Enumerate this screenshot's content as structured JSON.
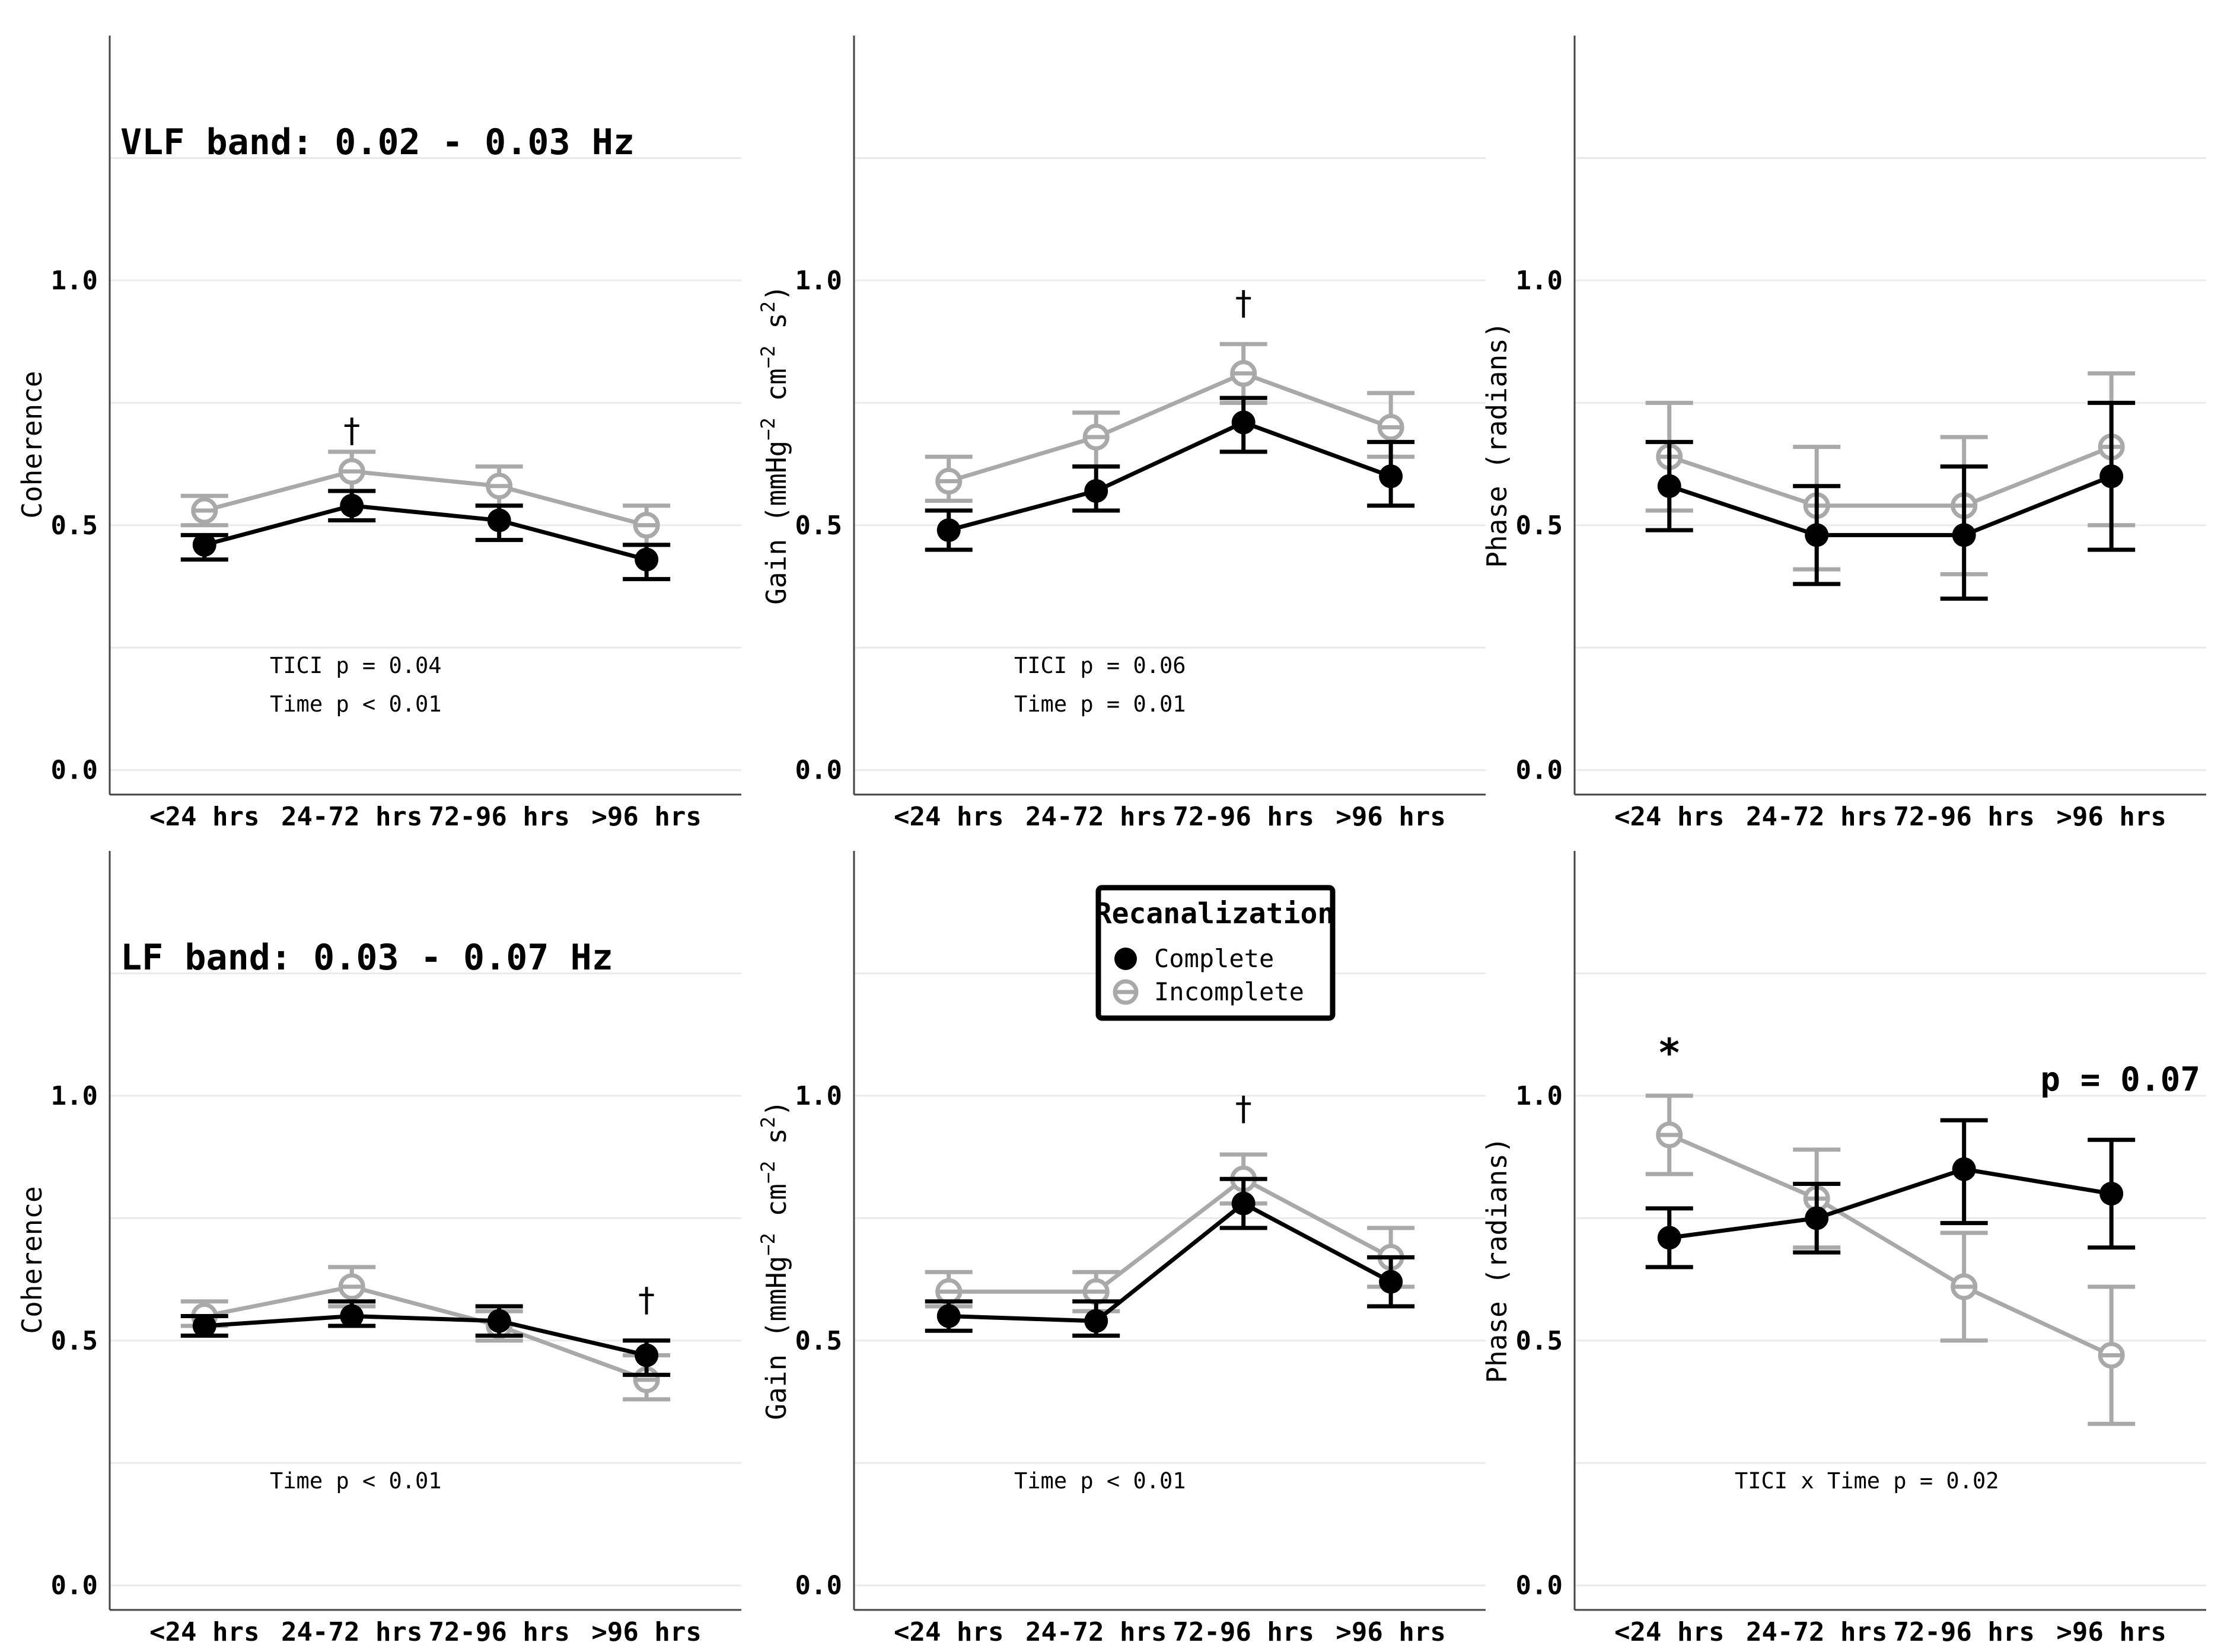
{
  "colors": {
    "complete": "#000000",
    "incomplete": "#a9a9a9",
    "grid": "#ebebeb",
    "axis": "#444444"
  },
  "legend": {
    "title": "Recanalization",
    "items": [
      {
        "label": "Complete",
        "series": "complete"
      },
      {
        "label": "Incomplete",
        "series": "incomplete"
      }
    ]
  },
  "chart_data": [
    {
      "type": "line",
      "row": 0,
      "col": 0,
      "band_label": "VLF band: 0.02 - 0.03 Hz",
      "ylabel": "Coherence",
      "ylim": [
        -0.05,
        1.5
      ],
      "yticks": [
        0.0,
        0.5,
        1.0
      ],
      "categories": [
        "<24 hrs",
        "24-72 hrs",
        "72-96 hrs",
        ">96 hrs"
      ],
      "series": [
        {
          "name": "Complete",
          "key": "complete",
          "values": [
            0.46,
            0.54,
            0.51,
            0.43
          ],
          "lower": [
            0.43,
            0.51,
            0.47,
            0.39
          ],
          "upper": [
            0.48,
            0.57,
            0.54,
            0.46
          ]
        },
        {
          "name": "Incomplete",
          "key": "incomplete",
          "values": [
            0.53,
            0.61,
            0.58,
            0.5
          ],
          "lower": [
            0.5,
            0.57,
            0.54,
            0.46
          ],
          "upper": [
            0.56,
            0.65,
            0.62,
            0.54
          ]
        }
      ],
      "annotations": [
        {
          "text": "†",
          "category": "24-72 hrs",
          "y": 0.67,
          "kind": "dag"
        }
      ],
      "stats": [
        "TICI p = 0.04",
        "Time p < 0.01"
      ]
    },
    {
      "type": "line",
      "row": 0,
      "col": 1,
      "ylabel_main": "Gain (mmHg",
      "ylabel_exp1": "−2",
      "ylabel_mid": " cm",
      "ylabel_exp2": "−2",
      "ylabel_s": " s",
      "ylabel_exp3": "2",
      "ylabel_end": ")",
      "ylim": [
        -0.05,
        1.5
      ],
      "yticks": [
        0.0,
        0.5,
        1.0
      ],
      "categories": [
        "<24 hrs",
        "24-72 hrs",
        "72-96 hrs",
        ">96 hrs"
      ],
      "series": [
        {
          "name": "Complete",
          "key": "complete",
          "values": [
            0.49,
            0.57,
            0.71,
            0.6
          ],
          "lower": [
            0.45,
            0.53,
            0.65,
            0.54
          ],
          "upper": [
            0.53,
            0.62,
            0.76,
            0.67
          ]
        },
        {
          "name": "Incomplete",
          "key": "incomplete",
          "values": [
            0.59,
            0.68,
            0.81,
            0.7
          ],
          "lower": [
            0.55,
            0.62,
            0.75,
            0.64
          ],
          "upper": [
            0.64,
            0.73,
            0.87,
            0.77
          ]
        }
      ],
      "annotations": [
        {
          "text": "†",
          "category": "72-96 hrs",
          "y": 0.93,
          "kind": "dag"
        }
      ],
      "stats": [
        "TICI p = 0.06",
        "Time p = 0.01"
      ]
    },
    {
      "type": "line",
      "row": 0,
      "col": 2,
      "ylabel": "Phase (radians)",
      "ylim": [
        -0.05,
        1.5
      ],
      "yticks": [
        0.0,
        0.5,
        1.0
      ],
      "categories": [
        "<24 hrs",
        "24-72 hrs",
        "72-96 hrs",
        ">96 hrs"
      ],
      "series": [
        {
          "name": "Complete",
          "key": "complete",
          "values": [
            0.58,
            0.48,
            0.48,
            0.6
          ],
          "lower": [
            0.49,
            0.38,
            0.35,
            0.45
          ],
          "upper": [
            0.67,
            0.58,
            0.62,
            0.75
          ]
        },
        {
          "name": "Incomplete",
          "key": "incomplete",
          "values": [
            0.64,
            0.54,
            0.54,
            0.66
          ],
          "lower": [
            0.53,
            0.41,
            0.4,
            0.5
          ],
          "upper": [
            0.75,
            0.66,
            0.68,
            0.81
          ]
        }
      ],
      "annotations": [],
      "stats": []
    },
    {
      "type": "line",
      "row": 1,
      "col": 0,
      "band_label": "LF band: 0.03 - 0.07 Hz",
      "ylabel": "Coherence",
      "ylim": [
        -0.05,
        1.5
      ],
      "yticks": [
        0.0,
        0.5,
        1.0
      ],
      "categories": [
        "<24 hrs",
        "24-72 hrs",
        "72-96 hrs",
        ">96 hrs"
      ],
      "series": [
        {
          "name": "Complete",
          "key": "complete",
          "values": [
            0.53,
            0.55,
            0.54,
            0.47
          ],
          "lower": [
            0.51,
            0.53,
            0.51,
            0.43
          ],
          "upper": [
            0.55,
            0.58,
            0.57,
            0.5
          ]
        },
        {
          "name": "Incomplete",
          "key": "incomplete",
          "values": [
            0.55,
            0.61,
            0.53,
            0.42
          ],
          "lower": [
            0.53,
            0.57,
            0.5,
            0.38
          ],
          "upper": [
            0.58,
            0.65,
            0.56,
            0.47
          ]
        }
      ],
      "annotations": [
        {
          "text": "†",
          "category": ">96 hrs",
          "y": 0.56,
          "kind": "dag"
        }
      ],
      "stats": [
        "Time p < 0.01"
      ]
    },
    {
      "type": "line",
      "row": 1,
      "col": 1,
      "ylabel_main": "Gain (mmHg",
      "ylabel_exp1": "−2",
      "ylabel_mid": " cm",
      "ylabel_exp2": "−2",
      "ylabel_s": " s",
      "ylabel_exp3": "2",
      "ylabel_end": ")",
      "ylim": [
        -0.05,
        1.5
      ],
      "yticks": [
        0.0,
        0.5,
        1.0
      ],
      "categories": [
        "<24 hrs",
        "24-72 hrs",
        "72-96 hrs",
        ">96 hrs"
      ],
      "series": [
        {
          "name": "Complete",
          "key": "complete",
          "values": [
            0.55,
            0.54,
            0.78,
            0.62
          ],
          "lower": [
            0.52,
            0.51,
            0.73,
            0.57
          ],
          "upper": [
            0.58,
            0.58,
            0.83,
            0.67
          ]
        },
        {
          "name": "Incomplete",
          "key": "incomplete",
          "values": [
            0.6,
            0.6,
            0.83,
            0.67
          ],
          "lower": [
            0.57,
            0.56,
            0.78,
            0.61
          ],
          "upper": [
            0.64,
            0.64,
            0.88,
            0.73
          ]
        }
      ],
      "annotations": [
        {
          "text": "†",
          "category": "72-96 hrs",
          "y": 0.95,
          "kind": "dag"
        }
      ],
      "stats": [
        "Time p < 0.01"
      ]
    },
    {
      "type": "line",
      "row": 1,
      "col": 2,
      "ylabel": "Phase (radians)",
      "ylim": [
        -0.05,
        1.5
      ],
      "yticks": [
        0.0,
        0.5,
        1.0
      ],
      "categories": [
        "<24 hrs",
        "24-72 hrs",
        "72-96 hrs",
        ">96 hrs"
      ],
      "series": [
        {
          "name": "Complete",
          "key": "complete",
          "values": [
            0.71,
            0.75,
            0.85,
            0.8
          ],
          "lower": [
            0.65,
            0.68,
            0.74,
            0.69
          ],
          "upper": [
            0.77,
            0.82,
            0.95,
            0.91
          ]
        },
        {
          "name": "Incomplete",
          "key": "incomplete",
          "values": [
            0.92,
            0.79,
            0.61,
            0.47
          ],
          "lower": [
            0.84,
            0.69,
            0.5,
            0.33
          ],
          "upper": [
            1.0,
            0.89,
            0.72,
            0.61
          ]
        }
      ],
      "annotations": [
        {
          "text": "*",
          "category": "<24 hrs",
          "y": 1.06,
          "kind": "star"
        },
        {
          "text": "p = 0.07",
          "category": ">96 hrs",
          "y": 1.01,
          "kind": "pval"
        }
      ],
      "stats": [
        "TICI x Time p = 0.02"
      ]
    }
  ]
}
